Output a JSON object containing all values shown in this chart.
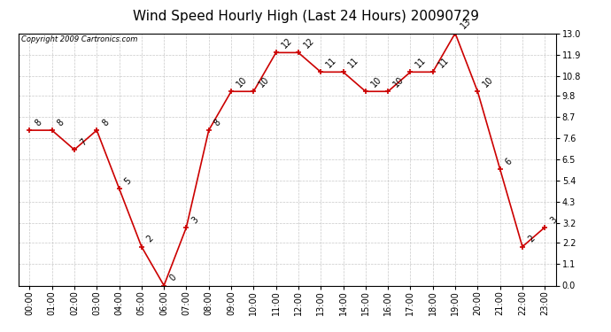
{
  "title": "Wind Speed Hourly High (Last 24 Hours) 20090729",
  "copyright": "Copyright 2009 Cartronics.com",
  "hours": [
    "00:00",
    "01:00",
    "02:00",
    "03:00",
    "04:00",
    "05:00",
    "06:00",
    "07:00",
    "08:00",
    "09:00",
    "10:00",
    "11:00",
    "12:00",
    "13:00",
    "14:00",
    "15:00",
    "16:00",
    "17:00",
    "18:00",
    "19:00",
    "20:00",
    "21:00",
    "22:00",
    "23:00"
  ],
  "values": [
    8,
    8,
    7,
    8,
    5,
    2,
    0,
    3,
    8,
    10,
    10,
    12,
    12,
    11,
    11,
    10,
    10,
    11,
    11,
    13,
    10,
    6,
    2,
    3
  ],
  "line_color": "#cc0000",
  "marker_color": "#cc0000",
  "bg_color": "#ffffff",
  "grid_color": "#bbbbbb",
  "ylim": [
    0,
    13.0
  ],
  "yticks": [
    0.0,
    1.1,
    2.2,
    3.2,
    4.3,
    5.4,
    6.5,
    7.6,
    8.7,
    9.8,
    10.8,
    11.9,
    13.0
  ],
  "ytick_labels": [
    "0.0",
    "1.1",
    "2.2",
    "3.2",
    "4.3",
    "5.4",
    "6.5",
    "7.6",
    "8.7",
    "9.8",
    "10.8",
    "11.9",
    "13.0"
  ],
  "title_fontsize": 11,
  "label_fontsize": 7,
  "annotation_fontsize": 7,
  "copyright_fontsize": 6
}
